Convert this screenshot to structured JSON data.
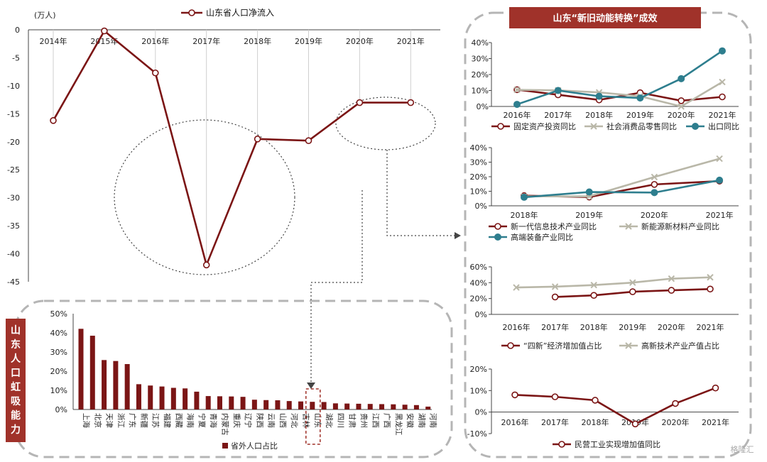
{
  "main_chart": {
    "unit_label": "(万人)",
    "legend_label": "山东省人口净流入",
    "years": [
      "2014年",
      "2015年",
      "2016年",
      "2017年",
      "2018年",
      "2019年",
      "2020年",
      "2021年"
    ],
    "values": [
      -16.2,
      -0.2,
      -7.7,
      -42.0,
      -19.5,
      -19.8,
      -13.0,
      -13.0
    ],
    "yticks": [
      "0",
      "-5",
      "-10",
      "-15",
      "-20",
      "-25",
      "-30",
      "-35",
      "-40",
      "-45"
    ],
    "ylim": [
      -45,
      0
    ],
    "colors": {
      "line": "#7b1515",
      "marker_fill": "#ffffff"
    }
  },
  "right_panel": {
    "title": "山东“新旧动能转换”成效",
    "title_bg": "#a0322a",
    "title_color": "#ffffff"
  },
  "left_panel": {
    "side_title_chars": [
      "山",
      "东",
      "人",
      "口",
      "虹",
      "吸",
      "能",
      "力"
    ],
    "side_bg": "#a0322a"
  },
  "chart_data": [
    {
      "type": "line",
      "title": "山东省人口净流入",
      "ylabel": "(万人)",
      "x": [
        "2014年",
        "2015年",
        "2016年",
        "2017年",
        "2018年",
        "2019年",
        "2020年",
        "2021年"
      ],
      "series": [
        {
          "name": "山东省人口净流入",
          "values": [
            -16.2,
            -0.2,
            -7.7,
            -42.0,
            -19.5,
            -19.8,
            -13.0,
            -13.0
          ]
        }
      ],
      "ylim": [
        -45,
        0
      ]
    },
    {
      "type": "line",
      "x": [
        "2016年",
        "2017年",
        "2018年",
        "2019年",
        "2020年",
        "2021年"
      ],
      "yticks": [
        "0%",
        "10%",
        "20%",
        "30%",
        "40%"
      ],
      "ylim": [
        0,
        40
      ],
      "series": [
        {
          "name": "固定资产投资同比",
          "color": "#7b1515",
          "marker": "circle",
          "values": [
            10.5,
            7.3,
            4.1,
            8.6,
            3.6,
            6.0
          ]
        },
        {
          "name": "社会消费品零售同比",
          "color": "#b9b7a8",
          "marker": "cross",
          "values": [
            10.4,
            10.1,
            8.8,
            6.4,
            0.0,
            15.3
          ]
        },
        {
          "name": "出口同比",
          "color": "#2e7e8e",
          "marker": "dot",
          "values": [
            1.3,
            10.0,
            6.4,
            5.3,
            17.4,
            34.8
          ]
        }
      ]
    },
    {
      "type": "line",
      "x": [
        "2018年",
        "2019年",
        "2020年",
        "2021年"
      ],
      "yticks": [
        "0%",
        "10%",
        "20%",
        "30%",
        "40%"
      ],
      "ylim": [
        0,
        40
      ],
      "series": [
        {
          "name": "新一代信息技术产业同比",
          "color": "#7b1515",
          "marker": "circle",
          "values": [
            7.0,
            6.0,
            14.7,
            17.0
          ]
        },
        {
          "name": "新能源新材料产业同比",
          "color": "#b9b7a8",
          "marker": "cross",
          "values": [
            6.5,
            6.5,
            19.8,
            32.4
          ]
        },
        {
          "name": "高端装备产业同比",
          "color": "#2e7e8e",
          "marker": "dot",
          "values": [
            5.9,
            9.5,
            9.1,
            17.6
          ]
        }
      ]
    },
    {
      "type": "line",
      "x": [
        "2016年",
        "2017年",
        "2018年",
        "2019年",
        "2020年",
        "2021年"
      ],
      "yticks": [
        "0%",
        "20%",
        "40%",
        "60%"
      ],
      "ylim": [
        0,
        60
      ],
      "series": [
        {
          "name": "“四新”经济增加值占比",
          "color": "#7b1515",
          "marker": "circle",
          "values": [
            null,
            22.0,
            24.0,
            28.6,
            30.4,
            32.0
          ]
        },
        {
          "name": "高新技术产业产值占比",
          "color": "#b9b7a8",
          "marker": "cross",
          "values": [
            34.0,
            35.0,
            37.0,
            40.1,
            45.1,
            46.8
          ]
        }
      ]
    },
    {
      "type": "line",
      "x": [
        "2016年",
        "2017年",
        "2018年",
        "2019年",
        "2020年",
        "2021年"
      ],
      "yticks": [
        "20%",
        "10%",
        "0%",
        "-10%"
      ],
      "ylim": [
        -10,
        20
      ],
      "series": [
        {
          "name": "民营工业实现增加值同比",
          "color": "#7b1515",
          "marker": "circle",
          "values": [
            8.0,
            7.1,
            5.5,
            -5.5,
            4.0,
            11.2
          ]
        }
      ]
    },
    {
      "type": "bar",
      "legend_label": "省外人口占比",
      "categories": [
        "上海",
        "北京",
        "天津",
        "浙江",
        "广东",
        "新疆",
        "江苏",
        "福建",
        "西藏",
        "海南",
        "宁夏",
        "青海",
        "内蒙古",
        "重庆",
        "辽宁",
        "陕西",
        "云南",
        "山西",
        "河北",
        "吉林",
        "山东",
        "湖北",
        "四川",
        "甘肃",
        "贵州",
        "江西",
        "广西",
        "黑龙江",
        "安徽",
        "湖南",
        "河南"
      ],
      "values": [
        42.1,
        38.5,
        25.8,
        25.3,
        23.7,
        13.2,
        12.5,
        12.0,
        11.3,
        11.0,
        9.3,
        7.0,
        6.9,
        6.8,
        6.6,
        5.1,
        4.9,
        4.8,
        4.4,
        4.2,
        4.0,
        3.9,
        3.2,
        3.1,
        3.0,
        2.9,
        2.8,
        2.7,
        2.5,
        2.3,
        1.5
      ],
      "highlight": "山东",
      "yticks": [
        "0%",
        "10%",
        "20%",
        "30%",
        "40%",
        "50%"
      ],
      "ylim": [
        0,
        50
      ],
      "color": "#7b1515"
    }
  ],
  "watermark": "格隆汇"
}
